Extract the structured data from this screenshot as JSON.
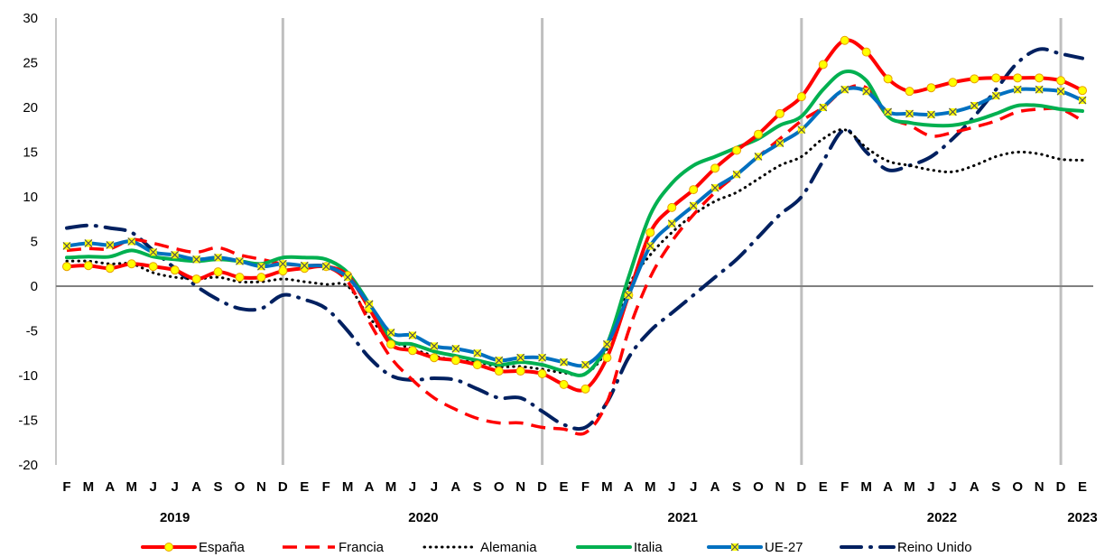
{
  "chart_data": {
    "type": "line",
    "title": "",
    "xlabel": "",
    "ylabel": "",
    "ylim": [
      -20,
      30
    ],
    "yticks": [
      -20,
      -15,
      -10,
      -5,
      0,
      5,
      10,
      15,
      20,
      25,
      30
    ],
    "grid": "vertical lines at December",
    "legend_position": "bottom",
    "months": [
      "F",
      "M",
      "A",
      "M",
      "J",
      "J",
      "A",
      "S",
      "O",
      "N",
      "D",
      "E",
      "F",
      "M",
      "A",
      "M",
      "J",
      "J",
      "A",
      "S",
      "O",
      "N",
      "D",
      "E",
      "F",
      "M",
      "A",
      "M",
      "J",
      "J",
      "A",
      "S",
      "O",
      "N",
      "D",
      "E",
      "F",
      "M",
      "A",
      "M",
      "J",
      "J",
      "A",
      "S",
      "O",
      "N",
      "D",
      "E"
    ],
    "years": [
      {
        "label": "2019",
        "center_index": 5
      },
      {
        "label": "2020",
        "center_index": 16.5
      },
      {
        "label": "2021",
        "center_index": 28.5
      },
      {
        "label": "2022",
        "center_index": 40.5
      },
      {
        "label": "2023",
        "center_index": 47
      }
    ],
    "series": [
      {
        "name": "España",
        "color": "#ff0000",
        "style": "solid-markers",
        "values": [
          2.2,
          2.3,
          2.0,
          2.5,
          2.2,
          1.8,
          0.8,
          1.6,
          1.0,
          1.0,
          1.7,
          2.0,
          2.2,
          1.2,
          -2.5,
          -6.5,
          -7.2,
          -8.0,
          -8.3,
          -8.8,
          -9.5,
          -9.5,
          -9.8,
          -11.0,
          -11.5,
          -8.0,
          -1.0,
          6.0,
          8.8,
          10.8,
          13.2,
          15.2,
          17.0,
          19.3,
          21.2,
          24.8,
          27.5,
          26.2,
          23.2,
          21.8,
          22.2,
          22.8,
          23.2,
          23.3,
          23.3,
          23.3,
          23.0,
          21.9
        ]
      },
      {
        "name": "Francia",
        "color": "#ff0000",
        "style": "dashed",
        "values": [
          4.0,
          4.2,
          4.2,
          5.2,
          4.8,
          4.2,
          3.8,
          4.3,
          3.5,
          3.0,
          2.5,
          2.3,
          2.2,
          0.5,
          -4.0,
          -8.0,
          -10.5,
          -12.5,
          -13.8,
          -14.8,
          -15.3,
          -15.3,
          -15.8,
          -16.0,
          -16.4,
          -13.0,
          -5.0,
          1.0,
          5.0,
          8.0,
          10.5,
          12.5,
          14.5,
          16.5,
          18.5,
          20.0,
          22.0,
          22.2,
          19.0,
          18.0,
          16.8,
          17.2,
          17.8,
          18.5,
          19.5,
          19.8,
          19.8,
          18.5
        ]
      },
      {
        "name": "Alemania",
        "color": "#000000",
        "style": "dotted",
        "values": [
          2.8,
          2.8,
          2.5,
          2.5,
          1.5,
          1.0,
          0.8,
          1.0,
          0.5,
          0.5,
          0.8,
          0.5,
          0.2,
          0.0,
          -3.5,
          -6.0,
          -7.0,
          -7.8,
          -8.3,
          -8.5,
          -9.0,
          -9.0,
          -9.3,
          -9.7,
          -9.8,
          -7.0,
          0.0,
          3.5,
          6.0,
          8.0,
          9.5,
          10.5,
          12.0,
          13.5,
          14.5,
          16.5,
          17.5,
          15.5,
          14.0,
          13.5,
          13.0,
          12.8,
          13.5,
          14.5,
          15.0,
          14.8,
          14.2,
          14.1
        ]
      },
      {
        "name": "Italia",
        "color": "#00b050",
        "style": "solid",
        "values": [
          3.2,
          3.3,
          3.3,
          4.0,
          3.3,
          3.0,
          2.8,
          3.0,
          2.8,
          2.5,
          3.2,
          3.2,
          3.0,
          1.5,
          -2.0,
          -6.0,
          -6.5,
          -7.3,
          -7.8,
          -8.3,
          -8.8,
          -8.5,
          -8.8,
          -9.5,
          -9.8,
          -6.5,
          1.0,
          8.0,
          11.5,
          13.5,
          14.5,
          15.5,
          16.5,
          18.0,
          19.0,
          22.0,
          24.0,
          23.0,
          19.0,
          18.3,
          18.0,
          18.0,
          18.5,
          19.3,
          20.2,
          20.2,
          19.8,
          19.6
        ]
      },
      {
        "name": "UE-27",
        "color": "#0070c0",
        "style": "solid-markers",
        "values": [
          4.5,
          4.8,
          4.6,
          5.0,
          3.8,
          3.5,
          3.0,
          3.2,
          2.8,
          2.2,
          2.5,
          2.3,
          2.2,
          1.0,
          -2.0,
          -5.2,
          -5.5,
          -6.7,
          -7.0,
          -7.5,
          -8.3,
          -8.0,
          -8.0,
          -8.5,
          -8.8,
          -6.5,
          -1.0,
          4.5,
          7.0,
          9.0,
          11.0,
          12.5,
          14.5,
          16.0,
          17.5,
          20.0,
          22.0,
          21.8,
          19.5,
          19.3,
          19.2,
          19.5,
          20.2,
          21.3,
          22.0,
          22.0,
          21.8,
          20.8
        ]
      },
      {
        "name": "Reino Unido",
        "color": "#002060",
        "style": "dashdot",
        "values": [
          6.5,
          6.8,
          6.5,
          6.0,
          4.0,
          2.0,
          0.0,
          -1.5,
          -2.5,
          -2.5,
          -1.0,
          -1.5,
          -2.5,
          -5.0,
          -8.0,
          -10.0,
          -10.5,
          -10.3,
          -10.5,
          -11.5,
          -12.5,
          -12.5,
          -14.0,
          -15.5,
          -15.8,
          -13.0,
          -8.0,
          -5.0,
          -3.0,
          -1.0,
          1.0,
          3.0,
          5.5,
          8.0,
          10.0,
          14.0,
          17.5,
          15.0,
          13.0,
          13.5,
          14.5,
          16.5,
          19.0,
          22.0,
          25.0,
          26.5,
          26.0,
          25.5
        ]
      }
    ]
  }
}
